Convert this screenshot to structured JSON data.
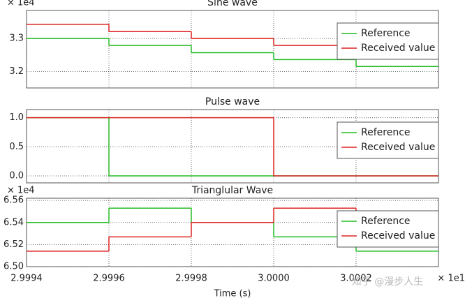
{
  "chart_data": [
    {
      "type": "step",
      "title": "Sine wave",
      "y_offset_label": "× 1e4",
      "x": [
        2.9994,
        2.9996,
        2.9998,
        3.0,
        3.0002
      ],
      "xlim": [
        2.9994,
        3.0004
      ],
      "xticks": [
        2.9994,
        2.9996,
        2.9998,
        3.0,
        3.0002
      ],
      "ylim": [
        3.15,
        3.385
      ],
      "yticks": [
        3.2,
        3.3
      ],
      "grid": true,
      "legend": "upper right",
      "series": [
        {
          "name": "Reference",
          "color": "#22bb22",
          "values": [
            3.3,
            3.279,
            3.257,
            3.236,
            3.215
          ]
        },
        {
          "name": "Received value",
          "color": "#dd2222",
          "values": [
            3.343,
            3.321,
            3.3,
            3.279,
            3.257
          ]
        }
      ]
    },
    {
      "type": "step",
      "title": "Pulse wave",
      "x": [
        2.9994,
        2.9996,
        2.9998,
        3.0,
        3.0002
      ],
      "xlim": [
        2.9994,
        3.0004
      ],
      "xticks": [
        2.9994,
        2.9996,
        2.9998,
        3.0,
        3.0002
      ],
      "ylim": [
        -0.12,
        1.14
      ],
      "yticks": [
        {
          "value": 0,
          "label": "0.0"
        },
        0.5,
        {
          "value": 1,
          "label": "1.0"
        }
      ],
      "grid": true,
      "legend": "upper right",
      "series": [
        {
          "name": "Reference",
          "color": "#22bb22",
          "values": [
            1,
            0,
            0,
            0,
            0
          ]
        },
        {
          "name": "Received value",
          "color": "#dd2222",
          "values": [
            1,
            1,
            1,
            0,
            0
          ]
        }
      ]
    },
    {
      "type": "step",
      "title": "Trianglular Wave",
      "y_offset_label": "× 1e4",
      "x_offset_label": "× 1e1",
      "xlabel": "Time (s)",
      "x": [
        2.9994,
        2.9996,
        2.9998,
        3.0,
        3.0002
      ],
      "xlim": [
        2.9994,
        3.0004
      ],
      "xticks": [
        2.9994,
        2.9996,
        2.9998,
        {
          "value": 3.0,
          "label": "3.0000"
        },
        3.0002
      ],
      "ylim": [
        6.5,
        6.562
      ],
      "yticks": [
        {
          "value": 6.5,
          "label": "6.50"
        },
        {
          "value": 6.52,
          "label": "6.52"
        },
        {
          "value": 6.54,
          "label": "6.54"
        },
        {
          "value": 6.56,
          "label": "6.56"
        }
      ],
      "grid": true,
      "legend": "upper right",
      "series": [
        {
          "name": "Reference",
          "color": "#22bb22",
          "values": [
            6.54,
            6.553,
            6.54,
            6.527,
            6.514
          ]
        },
        {
          "name": "Received value",
          "color": "#dd2222",
          "values": [
            6.514,
            6.527,
            6.54,
            6.553,
            6.54
          ]
        }
      ]
    }
  ],
  "watermark": "知乎 @漫步人生"
}
